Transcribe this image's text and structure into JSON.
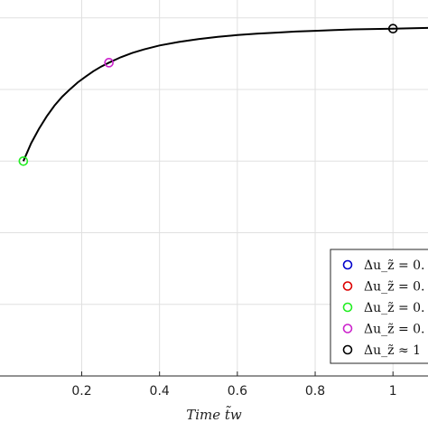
{
  "chart_data": {
    "type": "line",
    "title": "",
    "xlabel": "Time   t̃w",
    "ylabel": "",
    "xlim": [
      -0.01,
      1.09
    ],
    "ylim": [
      0,
      1.05
    ],
    "xticks": [
      0.2,
      0.4,
      0.6,
      0.8,
      1
    ],
    "xtick_labels": [
      "0.2",
      "0.4",
      "0.6",
      "0.8",
      "1"
    ],
    "yticks": [
      0.2,
      0.4,
      0.6,
      0.8,
      1.0
    ],
    "grid": true,
    "legend_position": "bottom-right",
    "curve": {
      "color": "#000000",
      "x": [
        0.05,
        0.07,
        0.09,
        0.11,
        0.13,
        0.15,
        0.17,
        0.19,
        0.21,
        0.23,
        0.25,
        0.27,
        0.3,
        0.33,
        0.36,
        0.4,
        0.45,
        0.5,
        0.55,
        0.6,
        0.65,
        0.7,
        0.75,
        0.8,
        0.85,
        0.9,
        0.95,
        1.0,
        1.05,
        1.09
      ],
      "y": [
        0.6,
        0.65,
        0.69,
        0.725,
        0.755,
        0.78,
        0.801,
        0.82,
        0.836,
        0.851,
        0.864,
        0.875,
        0.89,
        0.902,
        0.912,
        0.923,
        0.933,
        0.941,
        0.947,
        0.952,
        0.956,
        0.959,
        0.962,
        0.964,
        0.966,
        0.968,
        0.969,
        0.97,
        0.971,
        0.972
      ]
    },
    "series": [
      {
        "name": "Δu_z̃ = 0.",
        "color": "#0000cc",
        "points": []
      },
      {
        "name": "Δu_z̃ = 0.",
        "color": "#dd0000",
        "points": []
      },
      {
        "name": "Δu_z̃ = 0.",
        "color": "#22ee22",
        "points": [
          [
            0.05,
            0.6
          ]
        ]
      },
      {
        "name": "Δu_z̃ = 0.",
        "color": "#cc22cc",
        "points": [
          [
            0.27,
            0.875
          ]
        ]
      },
      {
        "name": "Δu_z̃ ≈ 1",
        "color": "#000000",
        "points": [
          [
            1.0,
            0.97
          ]
        ]
      }
    ]
  }
}
